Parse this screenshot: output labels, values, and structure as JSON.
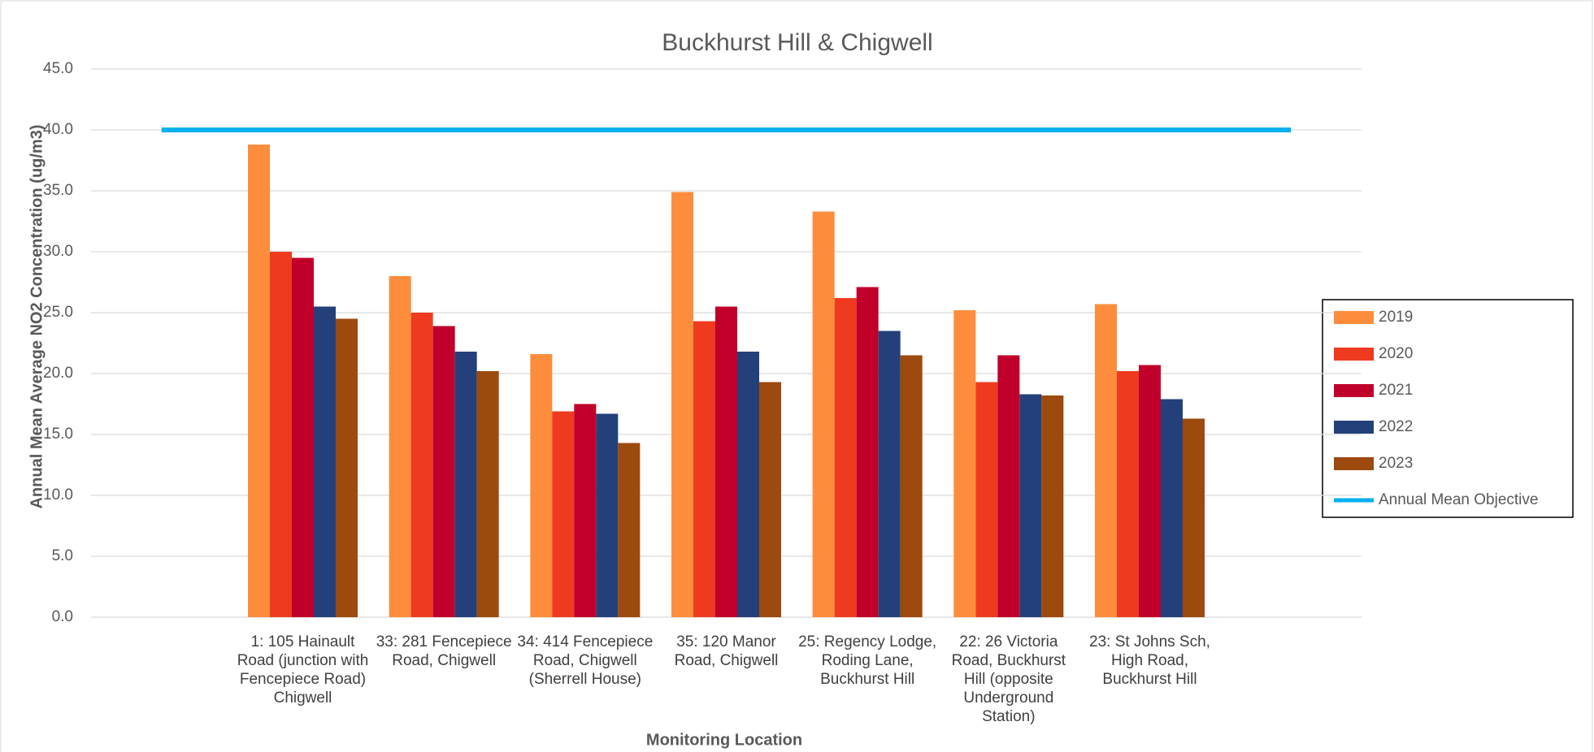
{
  "chart_data": {
    "type": "bar",
    "title": "Buckhurst Hill & Chigwell",
    "x_label": "Monitoring Location",
    "y_label": "Annual Mean Average NO2 Concentration (ug/m3)",
    "categories": [
      null,
      "1: 105 Hainault Road (junction with Fencepiece Road) Chigwell",
      "33: 281 Fencepiece Road, Chigwell",
      "34: 414 Fencepiece Road, Chigwell (Sherrell House)",
      "35: 120 Manor Road, Chigwell",
      "25: Regency Lodge, Roding Lane, Buckhurst Hill",
      "22: 26 Victoria Road, Buckhurst Hill (opposite Underground Station)",
      "23: St Johns Sch, High Road, Buckhurst Hill",
      null
    ],
    "series": [
      {
        "name": "2019",
        "color": "#fd8d3c",
        "values": [
          null,
          38.8,
          28.0,
          21.6,
          34.9,
          33.3,
          25.2,
          25.7,
          null
        ]
      },
      {
        "name": "2020",
        "color": "#ee3b20",
        "values": [
          null,
          30.0,
          25.0,
          16.9,
          24.3,
          26.2,
          19.3,
          20.2,
          null
        ]
      },
      {
        "name": "2021",
        "color": "#c0002a",
        "values": [
          null,
          29.5,
          23.9,
          17.5,
          25.5,
          27.1,
          21.5,
          20.7,
          null
        ]
      },
      {
        "name": "2022",
        "color": "#24407a",
        "values": [
          null,
          25.5,
          21.8,
          16.7,
          21.8,
          23.5,
          18.3,
          17.9,
          null
        ]
      },
      {
        "name": "2023",
        "color": "#9c4a0e",
        "values": [
          null,
          24.5,
          20.2,
          14.3,
          19.3,
          21.5,
          18.2,
          16.3,
          null
        ]
      },
      {
        "name": "Annual Mean Objective",
        "color": "#00b0f0",
        "type": "line",
        "values": [
          40,
          40,
          40,
          40,
          40,
          40,
          40,
          40,
          40
        ]
      }
    ],
    "ylim": [
      0,
      45
    ],
    "yticks": [
      {
        "value": 0,
        "label": "0.0"
      },
      {
        "value": 5,
        "label": "5.0"
      },
      {
        "value": 10,
        "label": "10.0"
      },
      {
        "value": 15,
        "label": "15.0"
      },
      {
        "value": 20,
        "label": "20.0"
      },
      {
        "value": 25,
        "label": "25.0"
      },
      {
        "value": 30,
        "label": "30.0"
      },
      {
        "value": 35,
        "label": "35.0"
      },
      {
        "value": 40,
        "label": "40.0"
      },
      {
        "value": 45,
        "label": "45.0"
      }
    ],
    "grid": true,
    "legend": "right"
  }
}
